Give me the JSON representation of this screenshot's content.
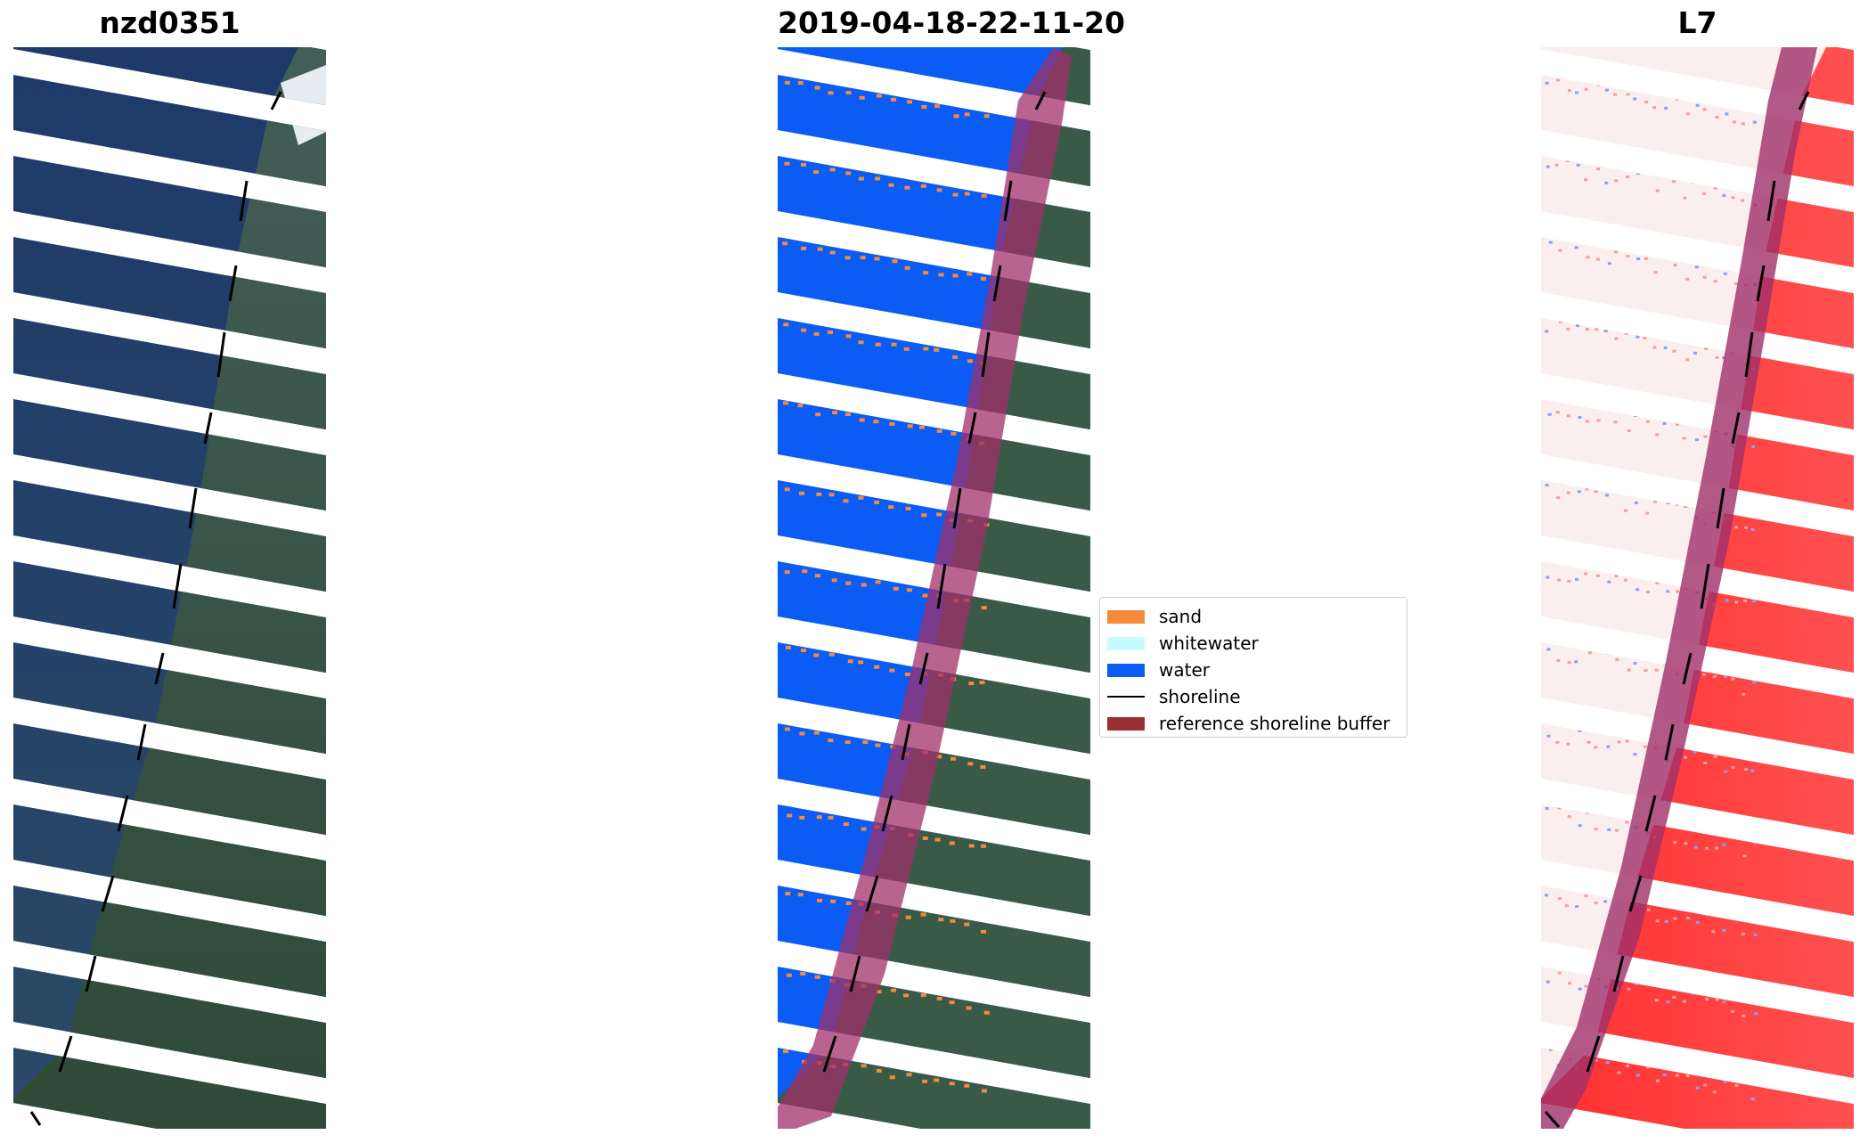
{
  "panels": [
    {
      "title": "nzd0351",
      "kind": "rgb-image"
    },
    {
      "title": "2019-04-18-22-11-20",
      "kind": "classified-image"
    },
    {
      "title": "L7",
      "kind": "water-index-image"
    }
  ],
  "legend": {
    "items": [
      {
        "label": "sand",
        "color": "#f58a3c"
      },
      {
        "label": "whitewater",
        "color": "#c8fbff"
      },
      {
        "label": "water",
        "color": "#0a5cf5"
      },
      {
        "label": "shoreline",
        "color": "#000000"
      },
      {
        "label": "reference shoreline buffer",
        "color": "#9a3036"
      }
    ]
  },
  "colors": {
    "ocean": "#1c3a66",
    "land": "#3a5a48",
    "water_class": "#0a5cf5",
    "index_red": "#ff2020",
    "buffer": "#a0306a"
  }
}
